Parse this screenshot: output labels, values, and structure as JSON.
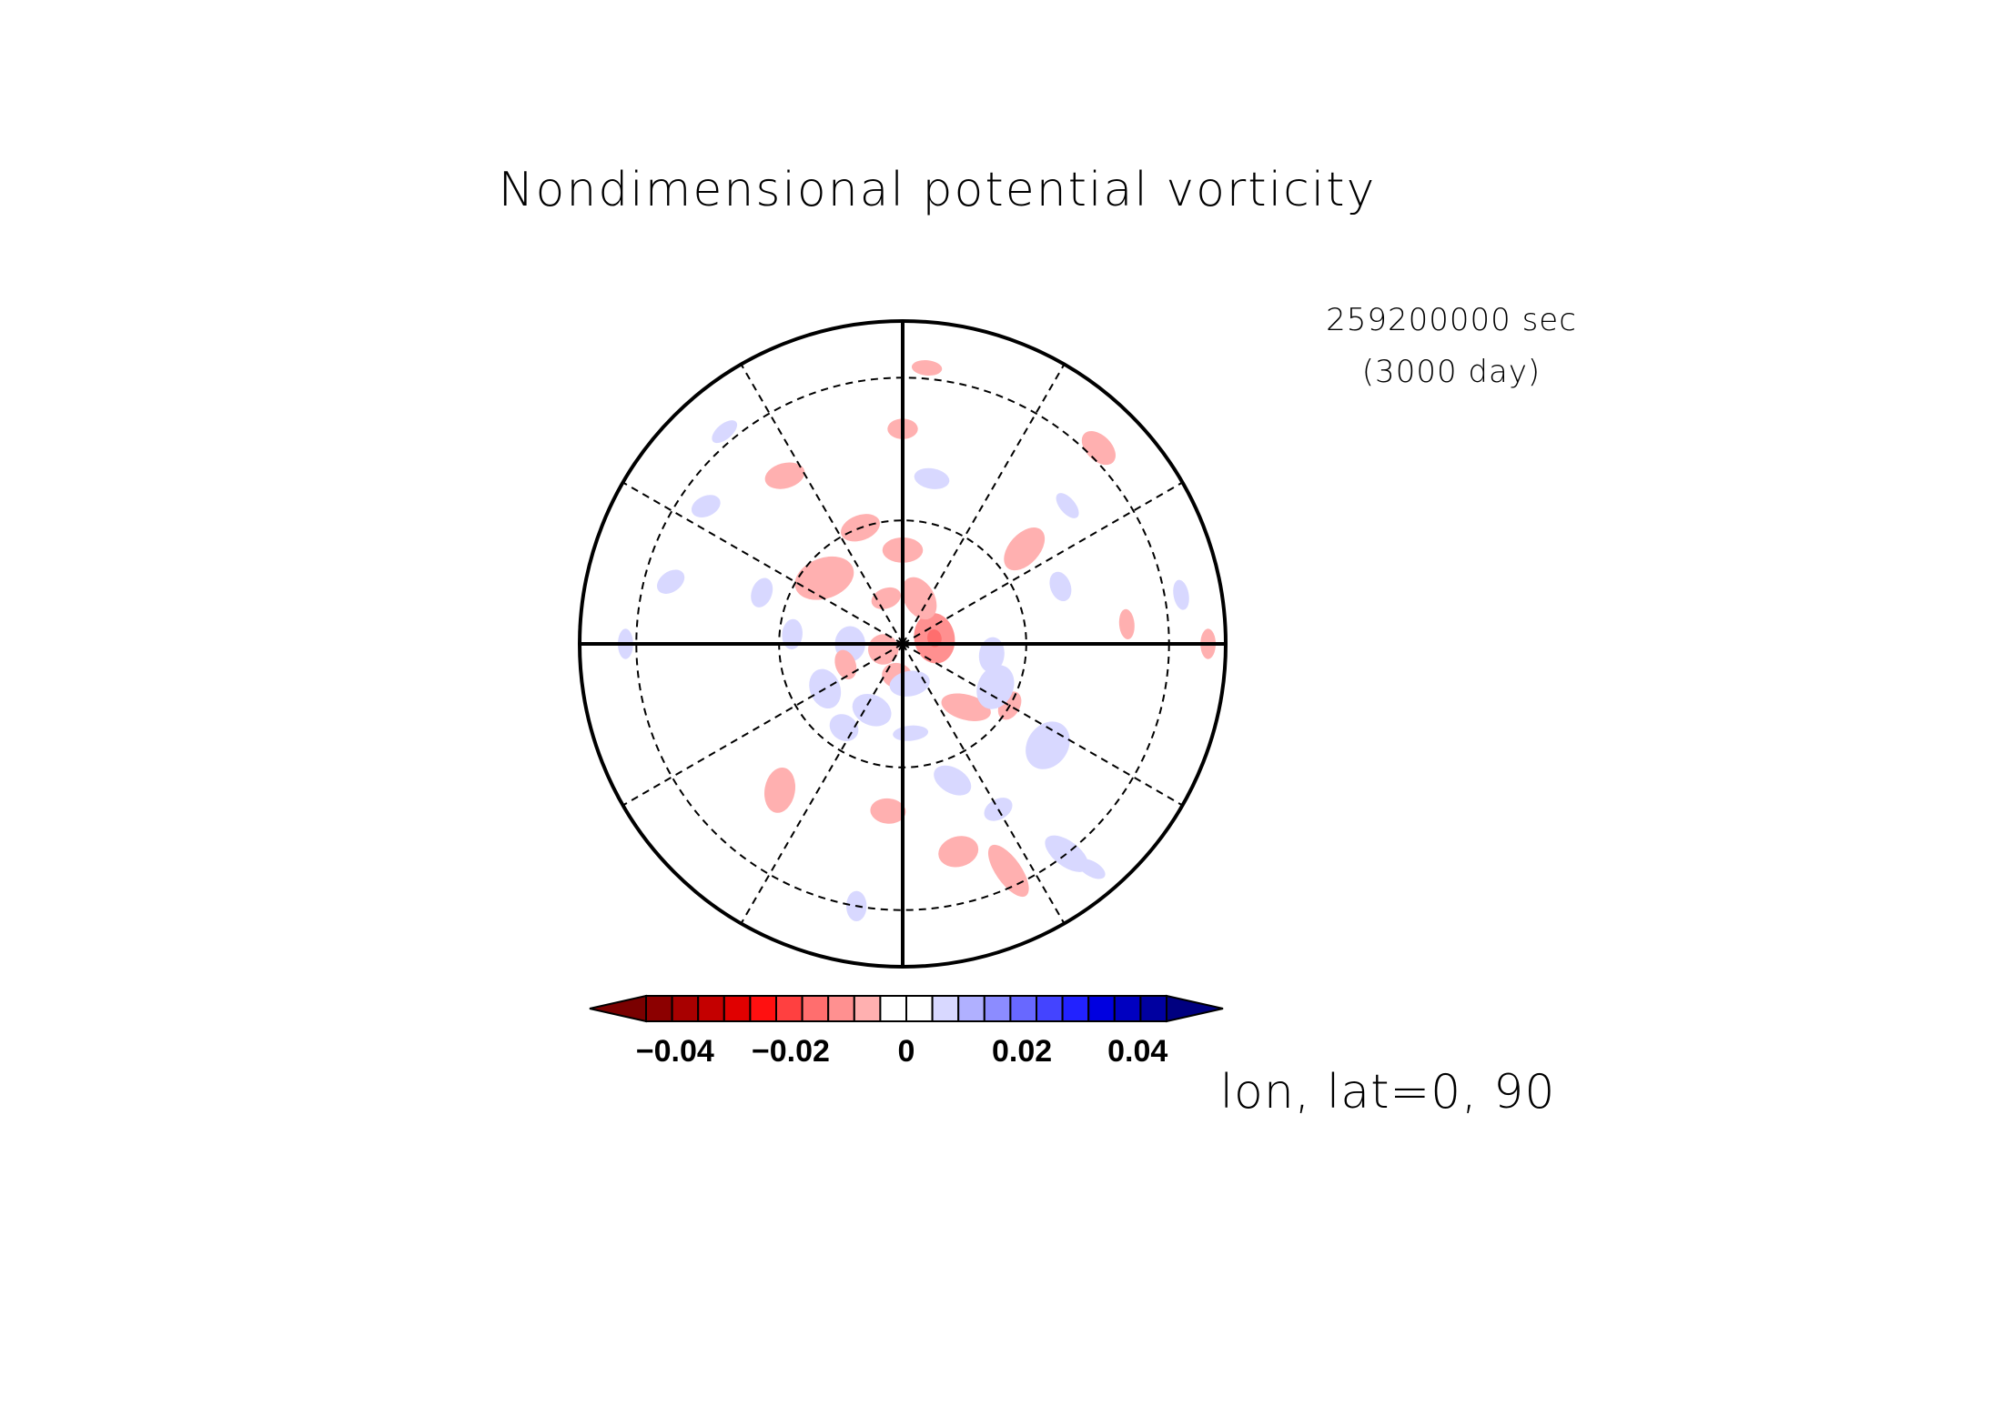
{
  "chart_data": {
    "type": "heatmap",
    "projection": "polar-stereographic",
    "title": "Nondimensional potential vorticity",
    "time_label": "259200000 sec",
    "day_label": "(3000 day)",
    "center_label": "lon, lat=0, 90",
    "center": {
      "lon": 0,
      "lat": 90
    },
    "latitude_circles": [
      60,
      30
    ],
    "boundary_latitude": 20,
    "meridians_solid": [
      0,
      90,
      180,
      270
    ],
    "meridians_dashed": [
      30,
      60,
      120,
      150,
      210,
      240,
      300,
      330
    ],
    "colorbar": {
      "levels": [
        -0.05,
        -0.045,
        -0.04,
        -0.035,
        -0.03,
        -0.025,
        -0.02,
        -0.015,
        -0.01,
        -0.005,
        0,
        0.005,
        0.01,
        0.015,
        0.02,
        0.025,
        0.03,
        0.035,
        0.04,
        0.045,
        0.05
      ],
      "colors": [
        "#7a0000",
        "#8c0000",
        "#a80000",
        "#c40000",
        "#e00000",
        "#ff1010",
        "#ff4040",
        "#ff6e6e",
        "#ff9090",
        "#ffb0b0",
        "#ffffff",
        "#ffffff",
        "#d8d8ff",
        "#b0b0ff",
        "#8c8cff",
        "#6868ff",
        "#4444ff",
        "#2222ff",
        "#0000e0",
        "#0000c0",
        "#0000a0",
        "#000080"
      ],
      "tick_values": [
        -0.04,
        -0.02,
        0,
        0.02,
        0.04
      ],
      "tick_labels": [
        "−0.04",
        "−0.02",
        "0",
        "0.02",
        "0.04"
      ],
      "extend": "both"
    },
    "blobs_note_units": "rho = colatitude degrees from pole, theta = longitude degrees",
    "blobs": [
      {
        "lon": 100,
        "colat": 8,
        "a": 5,
        "b": 4,
        "ang": 0,
        "v": -0.012,
        "core": -0.018
      },
      {
        "lon": 160,
        "colat": 12,
        "a": 4.5,
        "b": 3,
        "ang": 40,
        "v": -0.008
      },
      {
        "lon": 230,
        "colat": 25,
        "a": 6,
        "b": 4,
        "ang": 30,
        "v": -0.008
      },
      {
        "lon": 300,
        "colat": 22,
        "a": 4,
        "b": 3,
        "ang": 10,
        "v": 0.006
      },
      {
        "lon": 320,
        "colat": 45,
        "a": 4.5,
        "b": 3,
        "ang": 60,
        "v": -0.008
      },
      {
        "lon": 355,
        "colat": 40,
        "a": 3.5,
        "b": 2.5,
        "ang": 0,
        "v": -0.006
      },
      {
        "lon": 15,
        "colat": 50,
        "a": 4,
        "b": 3,
        "ang": 0,
        "v": -0.007
      },
      {
        "lon": 25,
        "colat": 57,
        "a": 6,
        "b": 2.5,
        "ang": 80,
        "v": -0.01
      },
      {
        "lon": 38,
        "colat": 60,
        "a": 5,
        "b": 2.5,
        "ang": 75,
        "v": 0.008
      },
      {
        "lon": 55,
        "colat": 42,
        "a": 5,
        "b": 4,
        "ang": 0,
        "v": 0.006
      },
      {
        "lon": 60,
        "colat": 30,
        "a": 3,
        "b": 2,
        "ang": 0,
        "v": -0.007
      },
      {
        "lon": 45,
        "colat": 22,
        "a": 5,
        "b": 2.5,
        "ang": 60,
        "v": -0.01
      },
      {
        "lon": 65,
        "colat": 25,
        "a": 4.5,
        "b": 3.5,
        "ang": 0,
        "v": 0.007
      },
      {
        "lon": 135,
        "colat": 62,
        "a": 4,
        "b": 2.5,
        "ang": 0,
        "v": -0.006
      },
      {
        "lon": 5,
        "colat": 22,
        "a": 3.5,
        "b": 1.5,
        "ang": 0,
        "v": 0.006
      },
      {
        "lon": 95,
        "colat": 52,
        "a": 3,
        "b": 1.5,
        "ang": 0,
        "v": -0.008
      },
      {
        "lon": 180,
        "colat": 23,
        "a": 4,
        "b": 2.5,
        "ang": 0,
        "v": -0.006
      },
      {
        "lon": 200,
        "colat": 30,
        "a": 4,
        "b": 2.5,
        "ang": 0,
        "v": -0.006
      },
      {
        "lon": 215,
        "colat": 48,
        "a": 4,
        "b": 2.5,
        "ang": 20,
        "v": -0.006
      },
      {
        "lon": 128,
        "colat": 37,
        "a": 5,
        "b": 3,
        "ang": 80,
        "v": -0.008
      },
      {
        "lon": 180,
        "colat": 50,
        "a": 3,
        "b": 2,
        "ang": 0,
        "v": -0.006
      },
      {
        "lon": 270,
        "colat": 13,
        "a": 3.5,
        "b": 3,
        "ang": 0,
        "v": 0.006
      },
      {
        "lon": 265,
        "colat": 27,
        "a": 3,
        "b": 2,
        "ang": 0,
        "v": 0.006
      },
      {
        "lon": 90,
        "colat": 67,
        "a": 3,
        "b": 1.5,
        "ang": 0,
        "v": -0.006
      },
      {
        "lon": 250,
        "colat": 36,
        "a": 3,
        "b": 2,
        "ang": 0,
        "v": 0.006
      },
      {
        "lon": 286,
        "colat": 5,
        "a": 3,
        "b": 3,
        "ang": 0,
        "v": -0.006
      },
      {
        "lon": 190,
        "colat": 68,
        "a": 3,
        "b": 2,
        "ang": 0,
        "v": -0.005
      },
      {
        "lon": 290,
        "colat": 15,
        "a": 3,
        "b": 2,
        "ang": 0,
        "v": -0.006
      },
      {
        "lon": 335,
        "colat": 18,
        "a": 4,
        "b": 3,
        "ang": 0,
        "v": 0.006
      },
      {
        "lon": 310,
        "colat": 60,
        "a": 3,
        "b": 2,
        "ang": 0,
        "v": -0.005
      },
      {
        "lon": 350,
        "colat": 8,
        "a": 3,
        "b": 2.5,
        "ang": 0,
        "v": -0.006
      },
      {
        "lon": 255,
        "colat": 55,
        "a": 3,
        "b": 2,
        "ang": 40,
        "v": 0.006
      },
      {
        "lon": 130,
        "colat": 50,
        "a": 3,
        "b": 1.5,
        "ang": 0,
        "v": 0.006
      },
      {
        "lon": 83,
        "colat": 22,
        "a": 3.5,
        "b": 2.5,
        "ang": 0,
        "v": 0.006
      },
      {
        "lon": 170,
        "colat": 40,
        "a": 3.5,
        "b": 2,
        "ang": 0,
        "v": 0.006
      },
      {
        "lon": 235,
        "colat": 55,
        "a": 3,
        "b": 2,
        "ang": 30,
        "v": 0.006
      },
      {
        "lon": 10,
        "colat": 10,
        "a": 4,
        "b": 2.5,
        "ang": 0,
        "v": 0.006
      },
      {
        "lon": 325,
        "colat": 25,
        "a": 3,
        "b": 2.5,
        "ang": 0,
        "v": 0.006
      },
      {
        "lon": 20,
        "colat": 35,
        "a": 4,
        "b": 2.5,
        "ang": 50,
        "v": 0.006
      },
      {
        "lon": 30,
        "colat": 45,
        "a": 3,
        "b": 2,
        "ang": 0,
        "v": 0.006
      },
      {
        "lon": 350,
        "colat": 60,
        "a": 3,
        "b": 2,
        "ang": 80,
        "v": 0.006
      },
      {
        "lon": 40,
        "colat": 65,
        "a": 3,
        "b": 1.5,
        "ang": 70,
        "v": 0.006
      },
      {
        "lon": 110,
        "colat": 40,
        "a": 3,
        "b": 2,
        "ang": 0,
        "v": 0.006
      },
      {
        "lon": 100,
        "colat": 63,
        "a": 3,
        "b": 1.5,
        "ang": 0,
        "v": 0.006
      },
      {
        "lon": 270,
        "colat": 62,
        "a": 3,
        "b": 1.5,
        "ang": 0,
        "v": 0.006
      },
      {
        "lon": 175,
        "colat": 62,
        "a": 3,
        "b": 1.5,
        "ang": 0,
        "v": -0.006
      },
      {
        "lon": 220,
        "colat": 62,
        "a": 3,
        "b": 1.5,
        "ang": 0,
        "v": 0.006
      },
      {
        "lon": 200,
        "colat": 12,
        "a": 3,
        "b": 2,
        "ang": 0,
        "v": -0.006
      }
    ]
  }
}
